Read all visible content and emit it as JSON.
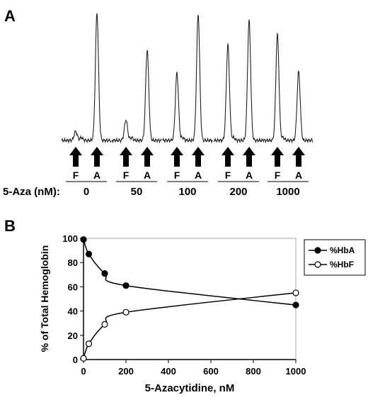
{
  "panel_a": {
    "label": "A",
    "dose_label": "5-Aza (nM):",
    "groups": [
      {
        "dose": "0",
        "arrow_labels": [
          "F",
          "A"
        ],
        "peak_f": 0.07,
        "peak_a": 1.0
      },
      {
        "dose": "50",
        "arrow_labels": [
          "F",
          "A"
        ],
        "peak_f": 0.16,
        "peak_a": 0.71
      },
      {
        "dose": "100",
        "arrow_labels": [
          "F",
          "A"
        ],
        "peak_f": 0.53,
        "peak_a": 0.99
      },
      {
        "dose": "200",
        "arrow_labels": [
          "F",
          "A"
        ],
        "peak_f": 0.75,
        "peak_a": 0.94
      },
      {
        "dose": "1000",
        "arrow_labels": [
          "F",
          "A"
        ],
        "peak_f": 0.83,
        "peak_a": 0.54
      }
    ]
  },
  "panel_b": {
    "label": "B",
    "chart_data": {
      "type": "line",
      "xlabel": "5-Azacytidine, nM",
      "ylabel": "% of Total Hemoglobin",
      "xlim": [
        0,
        1000
      ],
      "ylim": [
        0,
        100
      ],
      "xticks": [
        0,
        200,
        400,
        600,
        800,
        1000
      ],
      "yticks": [
        0,
        20,
        40,
        60,
        80,
        100
      ],
      "grid": false,
      "legend_position": "top-right",
      "series": [
        {
          "name": "%HbA",
          "marker": "filled-circle",
          "color": "#000000",
          "x": [
            0,
            25,
            100,
            200,
            1000
          ],
          "y": [
            99,
            87,
            71,
            61,
            45
          ]
        },
        {
          "name": "%HbF",
          "marker": "open-circle",
          "color": "#000000",
          "x": [
            0,
            25,
            100,
            200,
            1000
          ],
          "y": [
            1,
            13,
            29,
            39,
            55
          ]
        }
      ]
    }
  }
}
